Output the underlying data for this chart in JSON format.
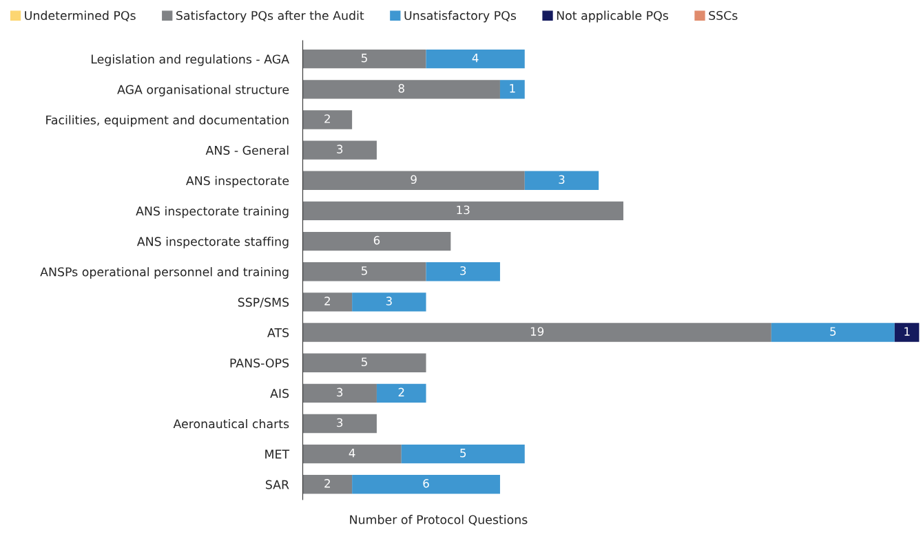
{
  "chart_data": {
    "type": "bar",
    "orientation": "horizontal",
    "stacked": true,
    "xlabel": "Number of Protocol Questions",
    "categories": [
      "Legislation and regulations - AGA",
      "AGA organisational structure",
      "Facilities, equipment and documentation",
      "ANS - General",
      "ANS inspectorate",
      "ANS inspectorate training",
      "ANS inspectorate staffing",
      "ANSPs operational personnel and training",
      "SSP/SMS",
      "ATS",
      "PANS-OPS",
      "AIS",
      "Aeronautical charts",
      "MET",
      "SAR"
    ],
    "series": [
      {
        "name": "Undetermined PQs",
        "color": "#fcd672",
        "values": [
          null,
          null,
          null,
          null,
          null,
          null,
          null,
          null,
          null,
          null,
          null,
          null,
          null,
          null,
          null
        ]
      },
      {
        "name": "Satisfactory PQs after the Audit",
        "color": "#808285",
        "values": [
          5,
          8,
          2,
          3,
          9,
          13,
          6,
          5,
          2,
          19,
          5,
          3,
          3,
          4,
          2
        ]
      },
      {
        "name": "Unsatisfactory PQs",
        "color": "#3e97d1",
        "values": [
          4,
          1,
          null,
          null,
          3,
          null,
          null,
          3,
          3,
          5,
          null,
          2,
          null,
          5,
          6
        ]
      },
      {
        "name": "Not applicable PQs",
        "color": "#141a5e",
        "values": [
          null,
          null,
          null,
          null,
          null,
          null,
          null,
          null,
          null,
          1,
          null,
          null,
          null,
          null,
          null
        ]
      },
      {
        "name": "SSCs",
        "color": "#e08b6c",
        "values": [
          null,
          null,
          null,
          null,
          null,
          null,
          null,
          null,
          null,
          null,
          null,
          null,
          null,
          null,
          null
        ]
      }
    ],
    "data_labels": true,
    "legend": "top",
    "grid": false
  }
}
